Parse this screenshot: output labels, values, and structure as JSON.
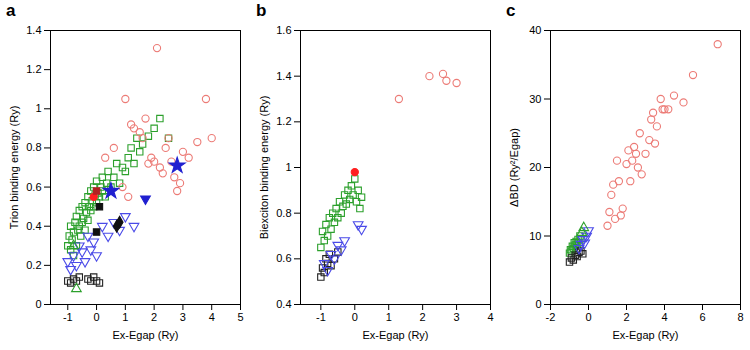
{
  "chart_data": [
    {
      "type": "scatter",
      "title": "a",
      "x_label": "Ex-Egap (Ry)",
      "y_label": "Trion binding energy (Ry)",
      "xlim": [
        -1.6,
        5
      ],
      "xticks": [
        -1,
        0,
        1,
        2,
        3,
        4,
        5
      ],
      "ylim": [
        0,
        1.4
      ],
      "yticks": [
        0,
        0.2,
        0.4,
        0.6,
        0.8,
        1,
        1.2,
        1.4
      ],
      "grid": false,
      "series": [
        {
          "color": "#2ca02c",
          "marker": "open-square",
          "x": [
            -1.0,
            -0.95,
            -0.9,
            -0.9,
            -0.85,
            -0.8,
            -0.8,
            -0.75,
            -0.7,
            -0.7,
            -0.65,
            -0.6,
            -0.6,
            -0.55,
            -0.5,
            -0.5,
            -0.45,
            -0.4,
            -0.4,
            -0.35,
            -0.3,
            -0.3,
            -0.25,
            -0.2,
            -0.2,
            -0.15,
            -0.1,
            -0.1,
            -0.05,
            0.0,
            0.0,
            0.05,
            0.1,
            0.15,
            0.2,
            0.2,
            0.3,
            0.35,
            0.4,
            0.5,
            0.6,
            0.7,
            0.8,
            0.9,
            1.0,
            1.1,
            1.2,
            1.3,
            1.4,
            1.5,
            1.6,
            1.8,
            2.0,
            2.2,
            2.5
          ],
          "values": [
            0.3,
            0.35,
            0.28,
            0.4,
            0.33,
            0.37,
            0.25,
            0.42,
            0.3,
            0.45,
            0.38,
            0.4,
            0.48,
            0.35,
            0.42,
            0.5,
            0.44,
            0.38,
            0.52,
            0.47,
            0.43,
            0.55,
            0.5,
            0.48,
            0.58,
            0.53,
            0.5,
            0.6,
            0.56,
            0.52,
            0.63,
            0.57,
            0.55,
            0.6,
            0.58,
            0.65,
            0.55,
            0.62,
            0.68,
            0.6,
            0.65,
            0.72,
            0.62,
            0.7,
            0.68,
            0.75,
            0.8,
            0.72,
            0.85,
            0.78,
            0.82,
            0.86,
            0.9,
            0.95,
            0.85
          ]
        },
        {
          "color": "#4a4ae8",
          "marker": "open-triangle-down",
          "x": [
            -1.0,
            -0.9,
            -0.8,
            -0.7,
            -0.6,
            -0.5,
            -0.4,
            -0.3,
            -0.2,
            -0.1,
            0.0,
            0.2,
            0.4,
            0.6,
            0.8,
            1.0,
            1.3
          ],
          "values": [
            0.22,
            0.18,
            0.25,
            0.2,
            0.3,
            0.27,
            0.22,
            0.35,
            0.28,
            0.32,
            0.25,
            0.4,
            0.35,
            0.42,
            0.38,
            0.45,
            0.4
          ]
        },
        {
          "color": "#222222",
          "marker": "open-square",
          "x": [
            -1.0,
            -0.9,
            -0.8,
            -0.7,
            -0.6,
            -0.3,
            -0.2,
            -0.1,
            0.0,
            0.1
          ],
          "values": [
            0.12,
            0.11,
            0.13,
            0.12,
            0.14,
            0.13,
            0.12,
            0.14,
            0.12,
            0.11
          ]
        },
        {
          "color": "#2ca02c",
          "marker": "open-triangle",
          "x": [
            -0.8,
            -0.7
          ],
          "values": [
            0.3,
            0.08
          ]
        },
        {
          "color": "#ec7b76",
          "marker": "open-circle",
          "x": [
            0.3,
            0.6,
            0.9,
            1.0,
            1.1,
            1.2,
            1.3,
            1.5,
            1.6,
            1.7,
            1.8,
            1.9,
            2.0,
            2.1,
            2.2,
            2.3,
            2.4,
            2.5,
            2.6,
            2.7,
            2.8,
            2.9,
            3.0,
            3.2,
            3.5,
            3.8,
            4.0
          ],
          "values": [
            0.75,
            0.8,
            0.6,
            1.05,
            0.55,
            0.92,
            0.9,
            0.88,
            0.85,
            0.95,
            0.72,
            0.75,
            0.73,
            1.31,
            0.7,
            0.67,
            0.8,
            0.85,
            0.73,
            0.65,
            0.58,
            0.62,
            0.78,
            0.75,
            0.83,
            1.05,
            0.85
          ]
        },
        {
          "color": "#ff2020",
          "marker": "filled-circle",
          "x": [
            -0.1
          ],
          "values": [
            0.55
          ]
        },
        {
          "color": "#b22222",
          "marker": "filled-square",
          "x": [
            0.0
          ],
          "values": [
            0.58
          ]
        },
        {
          "color": "#111111",
          "marker": "filled-square",
          "x": [
            0.0,
            0.1
          ],
          "values": [
            0.37,
            0.5
          ]
        },
        {
          "color": "#111111",
          "marker": "filled-diamond",
          "x": [
            0.7,
            0.8
          ],
          "values": [
            0.4,
            0.42
          ]
        },
        {
          "color": "#2020d0",
          "marker": "filled-star",
          "x": [
            0.5,
            2.8
          ],
          "values": [
            0.58,
            0.71
          ]
        },
        {
          "color": "#2020d0",
          "marker": "filled-triangle-down",
          "x": [
            1.7
          ],
          "values": [
            0.54
          ]
        }
      ]
    },
    {
      "type": "scatter",
      "title": "b",
      "x_label": "Ex-Egap (Ry)",
      "y_label": "Biexciton binding energy (Ry)",
      "xlim": [
        -1.6,
        4
      ],
      "xticks": [
        -1,
        0,
        1,
        2,
        3,
        4
      ],
      "ylim": [
        0.4,
        1.6
      ],
      "yticks": [
        0.4,
        0.6,
        0.8,
        1,
        1.2,
        1.4,
        1.6
      ],
      "grid": false,
      "series": [
        {
          "color": "#2ca02c",
          "marker": "open-square",
          "x": [
            -1.0,
            -0.95,
            -0.9,
            -0.85,
            -0.8,
            -0.75,
            -0.7,
            -0.65,
            -0.6,
            -0.55,
            -0.5,
            -0.45,
            -0.4,
            -0.35,
            -0.3,
            -0.25,
            -0.2,
            -0.15,
            -0.1,
            -0.05,
            0.0,
            0.05,
            0.1,
            0.15,
            0.2
          ],
          "values": [
            0.65,
            0.72,
            0.68,
            0.75,
            0.7,
            0.78,
            0.73,
            0.8,
            0.76,
            0.82,
            0.78,
            0.85,
            0.8,
            0.83,
            0.88,
            0.84,
            0.9,
            0.86,
            0.92,
            0.88,
            0.95,
            0.85,
            0.9,
            0.82,
            0.87
          ]
        },
        {
          "color": "#222222",
          "marker": "open-square",
          "x": [
            -1.0,
            -0.95,
            -0.9,
            -0.85,
            -0.8,
            -0.75,
            -0.7,
            -0.6,
            -0.5
          ],
          "values": [
            0.52,
            0.56,
            0.54,
            0.6,
            0.58,
            0.62,
            0.57,
            0.6,
            0.63
          ]
        },
        {
          "color": "#4a4ae8",
          "marker": "open-triangle-down",
          "x": [
            -0.9,
            -0.8,
            -0.7,
            -0.6,
            -0.5,
            -0.4,
            -0.3,
            0.1,
            0.2
          ],
          "values": [
            0.58,
            0.55,
            0.62,
            0.6,
            0.66,
            0.64,
            0.68,
            0.75,
            0.73
          ]
        },
        {
          "color": "#ec7b76",
          "marker": "open-circle",
          "x": [
            1.3,
            2.2,
            2.6,
            2.7,
            3.0
          ],
          "values": [
            1.3,
            1.4,
            1.41,
            1.38,
            1.37
          ]
        },
        {
          "color": "#ff2020",
          "marker": "filled-circle",
          "x": [
            0.0
          ],
          "values": [
            0.98
          ]
        }
      ]
    },
    {
      "type": "scatter",
      "title": "c",
      "x_label": "Ex-Egap (Ry)",
      "y_label": "ΔBD (Ry²/Egap)",
      "xlim": [
        -2,
        8
      ],
      "xticks": [
        -2,
        0,
        2,
        4,
        6,
        8
      ],
      "ylim": [
        0,
        40
      ],
      "yticks": [
        0,
        10,
        20,
        30,
        40
      ],
      "grid": false,
      "series": [
        {
          "color": "#ec7b76",
          "marker": "open-circle",
          "x": [
            1.0,
            1.1,
            1.3,
            1.5,
            1.6,
            1.8,
            2.0,
            2.1,
            2.2,
            2.3,
            2.4,
            2.5,
            2.6,
            2.8,
            3.0,
            3.2,
            3.3,
            3.5,
            3.6,
            3.8,
            4.0,
            4.2,
            4.5,
            5.0,
            5.5,
            6.8,
            1.2,
            1.4,
            1.7,
            2.7,
            3.4,
            3.9
          ],
          "values": [
            11.5,
            13.5,
            17.5,
            21,
            18,
            14,
            20.5,
            22.5,
            18,
            21,
            23,
            22,
            20,
            19,
            22,
            24,
            27,
            23.5,
            26,
            30,
            28.5,
            28.5,
            30.5,
            29.5,
            33.5,
            38,
            16,
            12.5,
            13,
            25,
            28,
            28.5
          ]
        },
        {
          "color": "#2ca02c",
          "marker": "open-square",
          "x": [
            -1.0,
            -0.95,
            -0.9,
            -0.85,
            -0.8,
            -0.75,
            -0.7,
            -0.65,
            -0.6,
            -0.55,
            -0.5,
            -0.45,
            -0.4
          ],
          "values": [
            7.5,
            8,
            7.8,
            8.5,
            8.2,
            9,
            8.7,
            9.2,
            8.8,
            9.5,
            9,
            10,
            9.6
          ]
        },
        {
          "color": "#222222",
          "marker": "open-square",
          "x": [
            -1.0,
            -0.9,
            -0.8,
            -0.7,
            -0.6,
            -0.5,
            -0.4,
            -0.3
          ],
          "values": [
            6.2,
            6.8,
            6.5,
            7.2,
            7,
            7.6,
            7.8,
            7.4
          ]
        },
        {
          "color": "#4a4ae8",
          "marker": "open-triangle-down",
          "x": [
            -0.5,
            -0.4,
            -0.3,
            -0.2,
            -0.1,
            0.0
          ],
          "values": [
            8.2,
            8.8,
            9.5,
            9,
            10,
            10.8
          ]
        },
        {
          "color": "#2ca02c",
          "marker": "open-triangle",
          "x": [
            -0.35,
            -0.25
          ],
          "values": [
            10.5,
            11.2
          ]
        }
      ]
    }
  ]
}
